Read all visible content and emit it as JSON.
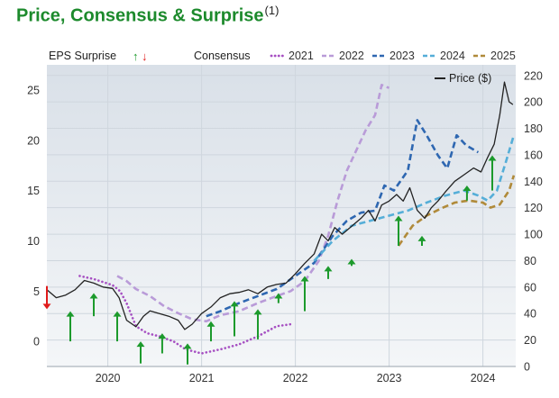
{
  "header": {
    "title": "Price, Consensus & Surprise",
    "footnote": "(1)"
  },
  "legend": {
    "eps_surprise": "EPS Surprise",
    "up_arrow": "↑",
    "down_arrow": "↓",
    "consensus": "Consensus",
    "price": "Price ($)"
  },
  "colors": {
    "c2021": "#a64fc2",
    "c2022": "#b99bd8",
    "c2023": "#2e67b1",
    "c2024": "#55aed8",
    "c2025": "#b08a3a",
    "price": "#222222",
    "up": "#1c9a2c",
    "down": "#e01b1b",
    "grid": "#cfd6de",
    "plot_bg_top": "#d9e0e8",
    "plot_bg_bottom": "#f4f6f8"
  },
  "chart_data": {
    "type": "line",
    "title": "Price, Consensus & Surprise",
    "x_axis": {
      "ticks": [
        "2020",
        "2021",
        "2022",
        "2023",
        "2024"
      ],
      "range": [
        2019.35,
        2024.35
      ]
    },
    "y_left": {
      "label": "",
      "range": [
        -2.5,
        27.5
      ],
      "ticks": [
        "0",
        "5",
        "10",
        "15",
        "20",
        "25"
      ],
      "tick_values": [
        0,
        5,
        10,
        15,
        20,
        25
      ]
    },
    "y_right": {
      "label": "Price ($)",
      "range": [
        0,
        228
      ],
      "ticks": [
        "0",
        "20",
        "40",
        "60",
        "80",
        "100",
        "120",
        "140",
        "160",
        "180",
        "200",
        "220"
      ],
      "tick_values": [
        0,
        20,
        40,
        60,
        80,
        100,
        120,
        140,
        160,
        180,
        200,
        220
      ]
    },
    "series": [
      {
        "name": "2021",
        "axis": "left",
        "style": "dotted",
        "color_key": "c2021",
        "points": [
          [
            2019.7,
            6.5
          ],
          [
            2019.85,
            6.2
          ],
          [
            2020.05,
            5.6
          ],
          [
            2020.13,
            5.0
          ],
          [
            2020.2,
            3.8
          ],
          [
            2020.3,
            1.5
          ],
          [
            2020.42,
            0.8
          ],
          [
            2020.55,
            0.5
          ],
          [
            2020.7,
            0.0
          ],
          [
            2020.83,
            -0.8
          ],
          [
            2021.0,
            -1.2
          ],
          [
            2021.2,
            -0.8
          ],
          [
            2021.4,
            -0.3
          ],
          [
            2021.6,
            0.5
          ],
          [
            2021.8,
            1.5
          ],
          [
            2021.95,
            1.7
          ]
        ]
      },
      {
        "name": "2022",
        "axis": "left",
        "style": "dashed",
        "color_key": "c2022",
        "points": [
          [
            2020.1,
            6.5
          ],
          [
            2020.2,
            6.0
          ],
          [
            2020.3,
            5.2
          ],
          [
            2020.45,
            4.5
          ],
          [
            2020.6,
            3.5
          ],
          [
            2020.75,
            2.8
          ],
          [
            2020.9,
            2.2
          ],
          [
            2021.05,
            2.0
          ],
          [
            2021.2,
            2.6
          ],
          [
            2021.4,
            3.0
          ],
          [
            2021.6,
            3.8
          ],
          [
            2021.8,
            4.5
          ],
          [
            2021.95,
            5.0
          ],
          [
            2022.1,
            6.0
          ],
          [
            2022.25,
            8.0
          ],
          [
            2022.35,
            10.5
          ],
          [
            2022.45,
            14.0
          ],
          [
            2022.55,
            17.0
          ],
          [
            2022.65,
            19.0
          ],
          [
            2022.75,
            21.0
          ],
          [
            2022.85,
            22.5
          ],
          [
            2022.92,
            25.5
          ],
          [
            2023.0,
            25.2
          ]
        ]
      },
      {
        "name": "2023",
        "axis": "left",
        "style": "dashed",
        "color_key": "c2023",
        "points": [
          [
            2021.05,
            2.5
          ],
          [
            2021.2,
            3.0
          ],
          [
            2021.4,
            3.8
          ],
          [
            2021.6,
            4.5
          ],
          [
            2021.8,
            5.2
          ],
          [
            2022.0,
            6.5
          ],
          [
            2022.2,
            7.8
          ],
          [
            2022.4,
            10.5
          ],
          [
            2022.55,
            12.0
          ],
          [
            2022.7,
            12.8
          ],
          [
            2022.85,
            13.0
          ],
          [
            2022.95,
            15.5
          ],
          [
            2023.05,
            15.0
          ],
          [
            2023.2,
            17.0
          ],
          [
            2023.3,
            22.0
          ],
          [
            2023.4,
            20.5
          ],
          [
            2023.52,
            18.5
          ],
          [
            2023.62,
            17.2
          ],
          [
            2023.72,
            20.5
          ],
          [
            2023.82,
            19.5
          ],
          [
            2023.95,
            18.8
          ]
        ]
      },
      {
        "name": "2024",
        "axis": "left",
        "style": "dashed",
        "color_key": "c2024",
        "points": [
          [
            2022.2,
            8.0
          ],
          [
            2022.4,
            10.0
          ],
          [
            2022.6,
            11.5
          ],
          [
            2022.8,
            12.0
          ],
          [
            2023.0,
            12.5
          ],
          [
            2023.2,
            13.0
          ],
          [
            2023.4,
            13.8
          ],
          [
            2023.6,
            14.5
          ],
          [
            2023.8,
            15.0
          ],
          [
            2023.95,
            14.5
          ],
          [
            2024.05,
            14.0
          ],
          [
            2024.15,
            15.0
          ],
          [
            2024.25,
            18.0
          ],
          [
            2024.33,
            20.5
          ]
        ]
      },
      {
        "name": "2025",
        "axis": "left",
        "style": "dashed",
        "color_key": "c2025",
        "points": [
          [
            2023.1,
            9.5
          ],
          [
            2023.25,
            11.5
          ],
          [
            2023.4,
            12.5
          ],
          [
            2023.55,
            13.2
          ],
          [
            2023.7,
            13.8
          ],
          [
            2023.85,
            14.0
          ],
          [
            2024.0,
            13.8
          ],
          [
            2024.08,
            13.3
          ],
          [
            2024.18,
            13.6
          ],
          [
            2024.28,
            15.0
          ],
          [
            2024.33,
            16.5
          ]
        ]
      },
      {
        "name": "Price ($)",
        "axis": "right",
        "style": "solid",
        "color_key": "price",
        "points": [
          [
            2019.35,
            58
          ],
          [
            2019.45,
            52
          ],
          [
            2019.55,
            54
          ],
          [
            2019.65,
            58
          ],
          [
            2019.75,
            65
          ],
          [
            2019.85,
            63
          ],
          [
            2019.95,
            60
          ],
          [
            2020.05,
            59
          ],
          [
            2020.12,
            52
          ],
          [
            2020.2,
            35
          ],
          [
            2020.3,
            30
          ],
          [
            2020.38,
            38
          ],
          [
            2020.45,
            42
          ],
          [
            2020.55,
            40
          ],
          [
            2020.65,
            38
          ],
          [
            2020.75,
            35
          ],
          [
            2020.82,
            28
          ],
          [
            2020.9,
            32
          ],
          [
            2021.0,
            40
          ],
          [
            2021.1,
            45
          ],
          [
            2021.2,
            52
          ],
          [
            2021.3,
            55
          ],
          [
            2021.4,
            56
          ],
          [
            2021.5,
            58
          ],
          [
            2021.6,
            55
          ],
          [
            2021.7,
            60
          ],
          [
            2021.8,
            62
          ],
          [
            2021.9,
            63
          ],
          [
            2022.0,
            70
          ],
          [
            2022.1,
            78
          ],
          [
            2022.2,
            85
          ],
          [
            2022.28,
            100
          ],
          [
            2022.35,
            95
          ],
          [
            2022.42,
            105
          ],
          [
            2022.5,
            100
          ],
          [
            2022.6,
            106
          ],
          [
            2022.7,
            112
          ],
          [
            2022.78,
            118
          ],
          [
            2022.85,
            110
          ],
          [
            2022.92,
            122
          ],
          [
            2023.0,
            125
          ],
          [
            2023.08,
            130
          ],
          [
            2023.15,
            125
          ],
          [
            2023.22,
            135
          ],
          [
            2023.3,
            118
          ],
          [
            2023.38,
            112
          ],
          [
            2023.45,
            120
          ],
          [
            2023.52,
            125
          ],
          [
            2023.6,
            132
          ],
          [
            2023.7,
            140
          ],
          [
            2023.8,
            145
          ],
          [
            2023.9,
            150
          ],
          [
            2023.98,
            147
          ],
          [
            2024.05,
            158
          ],
          [
            2024.12,
            168
          ],
          [
            2024.18,
            190
          ],
          [
            2024.23,
            215
          ],
          [
            2024.28,
            200
          ],
          [
            2024.32,
            198
          ]
        ]
      }
    ],
    "eps_surprises": [
      {
        "x": 2019.35,
        "direction": "down",
        "from": 5.5,
        "to": 3.2
      },
      {
        "x": 2019.6,
        "direction": "up",
        "from": 0.0,
        "to": 3.0
      },
      {
        "x": 2019.85,
        "direction": "up",
        "from": 2.5,
        "to": 4.8
      },
      {
        "x": 2020.1,
        "direction": "up",
        "from": 0.0,
        "to": 3.0
      },
      {
        "x": 2020.35,
        "direction": "up",
        "from": -2.2,
        "to": 0.0
      },
      {
        "x": 2020.58,
        "direction": "up",
        "from": -1.2,
        "to": 0.8
      },
      {
        "x": 2020.85,
        "direction": "up",
        "from": -2.3,
        "to": -0.2
      },
      {
        "x": 2021.1,
        "direction": "up",
        "from": 0.0,
        "to": 2.0
      },
      {
        "x": 2021.35,
        "direction": "up",
        "from": 0.5,
        "to": 4.0
      },
      {
        "x": 2021.6,
        "direction": "up",
        "from": 0.2,
        "to": 3.2
      },
      {
        "x": 2021.82,
        "direction": "up",
        "from": 3.8,
        "to": 4.8
      },
      {
        "x": 2022.1,
        "direction": "up",
        "from": 3.0,
        "to": 6.5
      },
      {
        "x": 2022.35,
        "direction": "up",
        "from": 6.2,
        "to": 7.5
      },
      {
        "x": 2022.6,
        "direction": "up",
        "from": 7.5,
        "to": 8.2
      },
      {
        "x": 2023.1,
        "direction": "up",
        "from": 9.5,
        "to": 12.5
      },
      {
        "x": 2023.35,
        "direction": "up",
        "from": 9.5,
        "to": 10.5
      },
      {
        "x": 2023.83,
        "direction": "up",
        "from": 14.0,
        "to": 15.5
      },
      {
        "x": 2024.1,
        "direction": "up",
        "from": 15.0,
        "to": 18.5
      }
    ]
  }
}
